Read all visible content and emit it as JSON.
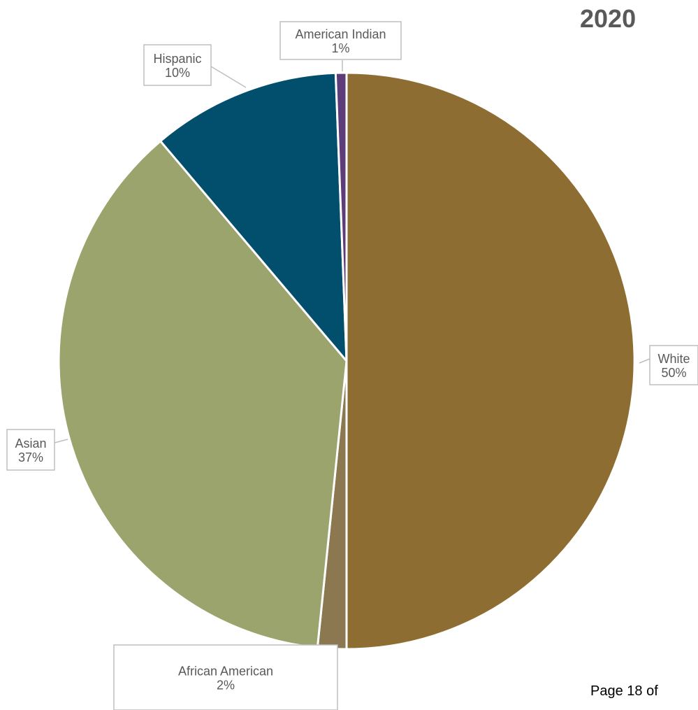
{
  "year_label": "2020",
  "footer": {
    "page_text": "Page 18 of"
  },
  "chart_data": {
    "type": "pie",
    "title": "",
    "start_angle_deg": 0,
    "direction": "clockwise",
    "slices": [
      {
        "label": "White",
        "value_label": "50%",
        "value": 49.6,
        "color": "#8E6D32"
      },
      {
        "label": "African American",
        "value_label": "2%",
        "value": 1.6,
        "color": "#8B7750"
      },
      {
        "label": "Asian",
        "value_label": "37%",
        "value": 36.9,
        "color": "#9AA46C"
      },
      {
        "label": "Hispanic",
        "value_label": "10%",
        "value": 10.5,
        "color": "#024F6D"
      },
      {
        "label": "American Indian",
        "value_label": "1%",
        "value": 0.6,
        "color": "#5C3D7A"
      }
    ],
    "slice_border_color": "#ffffff",
    "label_border_color": "#BFBFBF",
    "label_text_color": "#595959"
  }
}
